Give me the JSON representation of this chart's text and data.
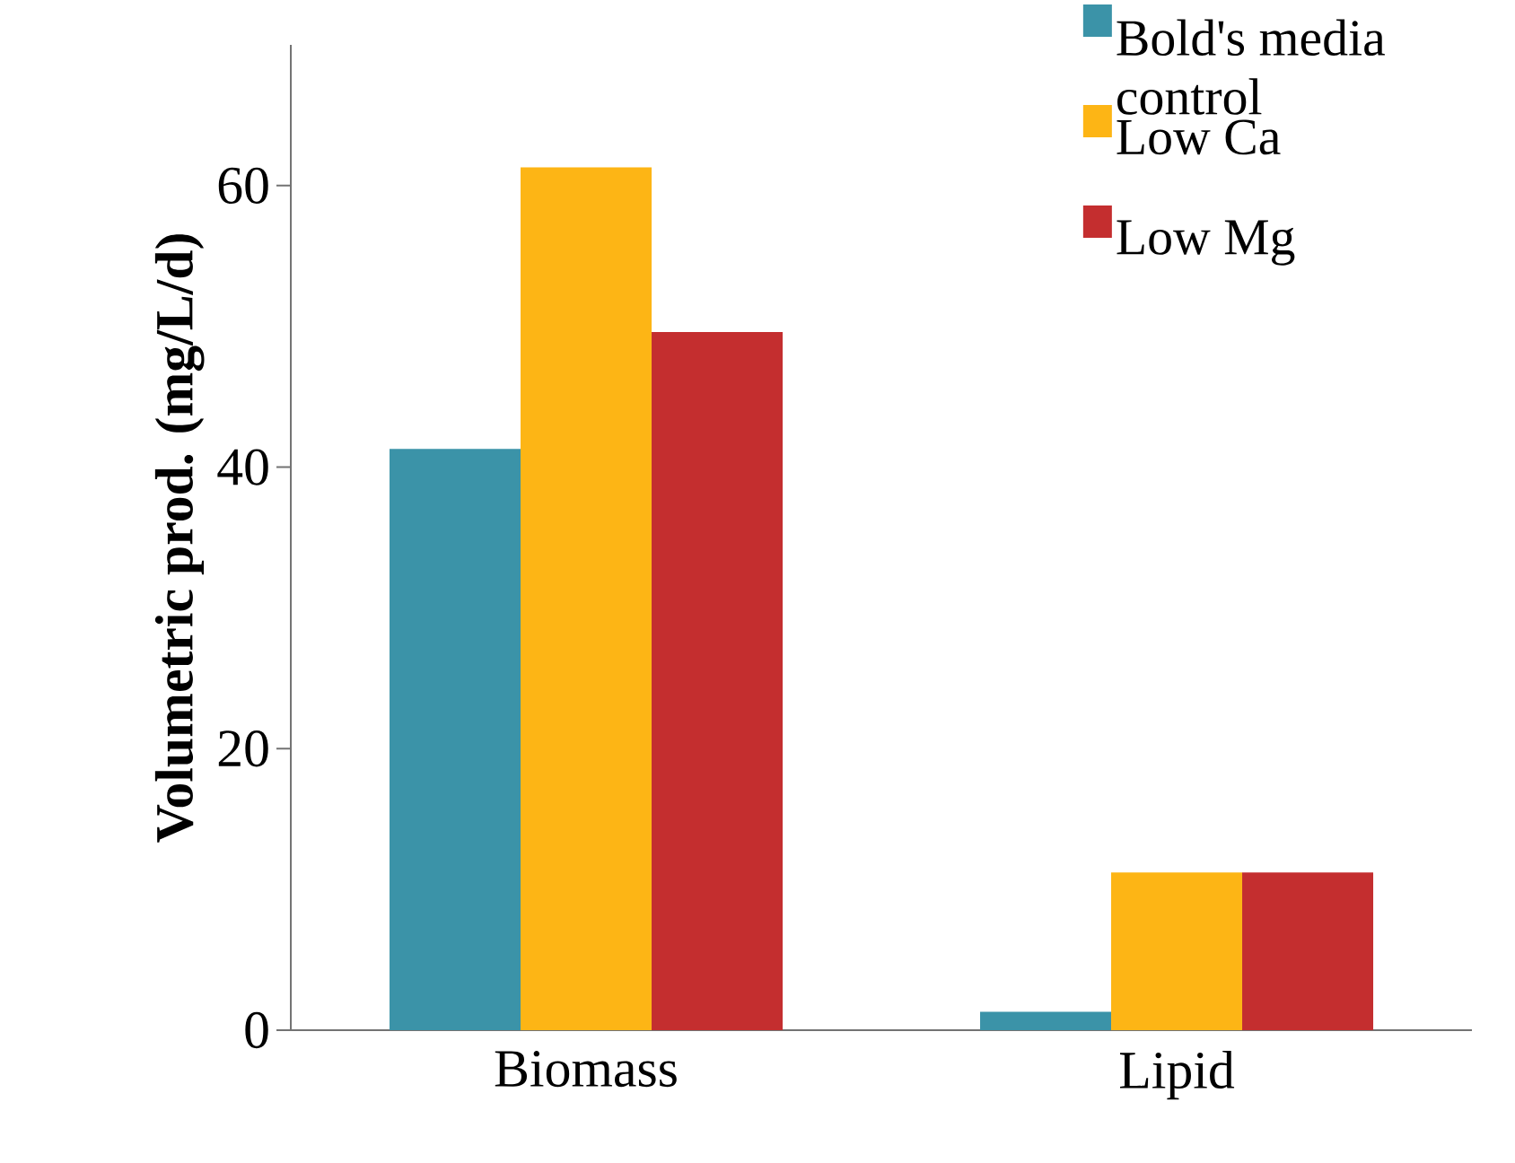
{
  "chart_data": {
    "type": "bar",
    "ylabel": "Volumetric prod. (mg/L/d)",
    "categories": [
      "Biomass",
      "Lipid"
    ],
    "series": [
      {
        "name": "Bold's media control",
        "color": "#3b93a8",
        "values": [
          41.3,
          1.3
        ]
      },
      {
        "name": "Low Ca",
        "color": "#fdb515",
        "values": [
          61.3,
          11.2
        ]
      },
      {
        "name": "Low Mg",
        "color": "#c42e2f",
        "values": [
          49.6,
          11.2
        ]
      }
    ],
    "ylim": [
      0,
      70
    ],
    "yticks": [
      0,
      20,
      40,
      60
    ],
    "grid": false,
    "legend": "top right"
  }
}
